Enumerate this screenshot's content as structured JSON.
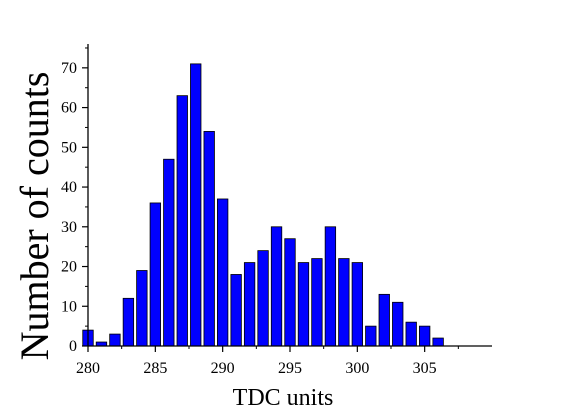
{
  "chart_data": {
    "type": "bar",
    "title": "",
    "xlabel": "TDC units",
    "ylabel": "Number of counts",
    "bar_color": "#0000ff",
    "bar_edge_color": "#000000",
    "xlim": [
      280,
      310
    ],
    "ylim": [
      0,
      76
    ],
    "x_ticks": [
      280,
      285,
      290,
      295,
      300,
      305
    ],
    "x_tick_labels": [
      "280",
      "285",
      "290",
      "295",
      "300",
      "305"
    ],
    "y_ticks": [
      0,
      10,
      20,
      30,
      40,
      50,
      60,
      70
    ],
    "y_tick_labels": [
      "0",
      "10",
      "20",
      "30",
      "40",
      "50",
      "60",
      "70"
    ],
    "grid": false,
    "legend": "none",
    "x": [
      280,
      281,
      282,
      283,
      284,
      285,
      286,
      287,
      288,
      289,
      290,
      291,
      292,
      293,
      294,
      295,
      296,
      297,
      298,
      299,
      300,
      301,
      302,
      303,
      304,
      305,
      306
    ],
    "values": [
      4,
      1,
      3,
      12,
      19,
      36,
      47,
      63,
      71,
      54,
      37,
      18,
      21,
      24,
      30,
      27,
      21,
      22,
      30,
      22,
      21,
      5,
      13,
      11,
      6,
      5,
      2
    ]
  }
}
